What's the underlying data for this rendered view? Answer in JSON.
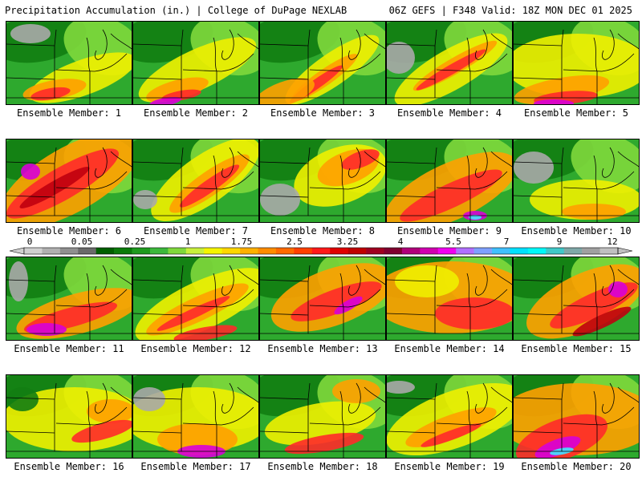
{
  "header": {
    "title_left": "Precipitation Accumulation (in.) | College of DuPage NEXLAB",
    "title_right": "06Z GEFS | F348 Valid: 18Z MON DEC 01 2025"
  },
  "legend": {
    "ticks": [
      "0",
      "0.05",
      "0.25",
      "1",
      "1.75",
      "2.5",
      "3.25",
      "4",
      "5.5",
      "7",
      "9",
      "12"
    ],
    "colors": [
      "#d0d0d0",
      "#b0b0b0",
      "#8f8f8f",
      "#6a6a6a",
      "#005f00",
      "#0a7a0a",
      "#1e9a1e",
      "#3cb83c",
      "#7fd83c",
      "#c8f03c",
      "#f5f500",
      "#ffd700",
      "#ffb000",
      "#ff8c00",
      "#ff6a00",
      "#ff4000",
      "#ff1a1a",
      "#e00000",
      "#c00000",
      "#a00020",
      "#800030",
      "#b0007a",
      "#d000b0",
      "#f000f0",
      "#b070ff",
      "#7fa0ff",
      "#40c0ff",
      "#00e0ff",
      "#00f8f8",
      "#40c8c8",
      "#7fa8a8",
      "#a0a0a0",
      "#c0c0c0"
    ]
  },
  "colors": {
    "green_dark": "#127d12",
    "green": "#2fa82f",
    "green_light": "#7fd83c",
    "yellow": "#f0f000",
    "orange": "#ffa000",
    "red": "#ff2a2a",
    "dark_red": "#c00010",
    "magenta": "#d800d8",
    "cyan": "#40e8ff",
    "gray": "#a8a8a8"
  },
  "panels": [
    {
      "caption": "Ensemble Member: 1"
    },
    {
      "caption": "Ensemble Member: 2"
    },
    {
      "caption": "Ensemble Member: 3"
    },
    {
      "caption": "Ensemble Member: 4"
    },
    {
      "caption": "Ensemble Member: 5"
    },
    {
      "caption": "Ensemble Member: 6"
    },
    {
      "caption": "Ensemble Member: 7"
    },
    {
      "caption": "Ensemble Member: 8"
    },
    {
      "caption": "Ensemble Member: 9"
    },
    {
      "caption": "Ensemble Member: 10"
    },
    {
      "caption": "Ensemble Member: 11"
    },
    {
      "caption": "Ensemble Member: 12"
    },
    {
      "caption": "Ensemble Member: 13"
    },
    {
      "caption": "Ensemble Member: 14"
    },
    {
      "caption": "Ensemble Member: 15"
    },
    {
      "caption": "Ensemble Member: 16"
    },
    {
      "caption": "Ensemble Member: 17"
    },
    {
      "caption": "Ensemble Member: 18"
    },
    {
      "caption": "Ensemble Member: 19"
    },
    {
      "caption": "Ensemble Member: 20"
    }
  ]
}
